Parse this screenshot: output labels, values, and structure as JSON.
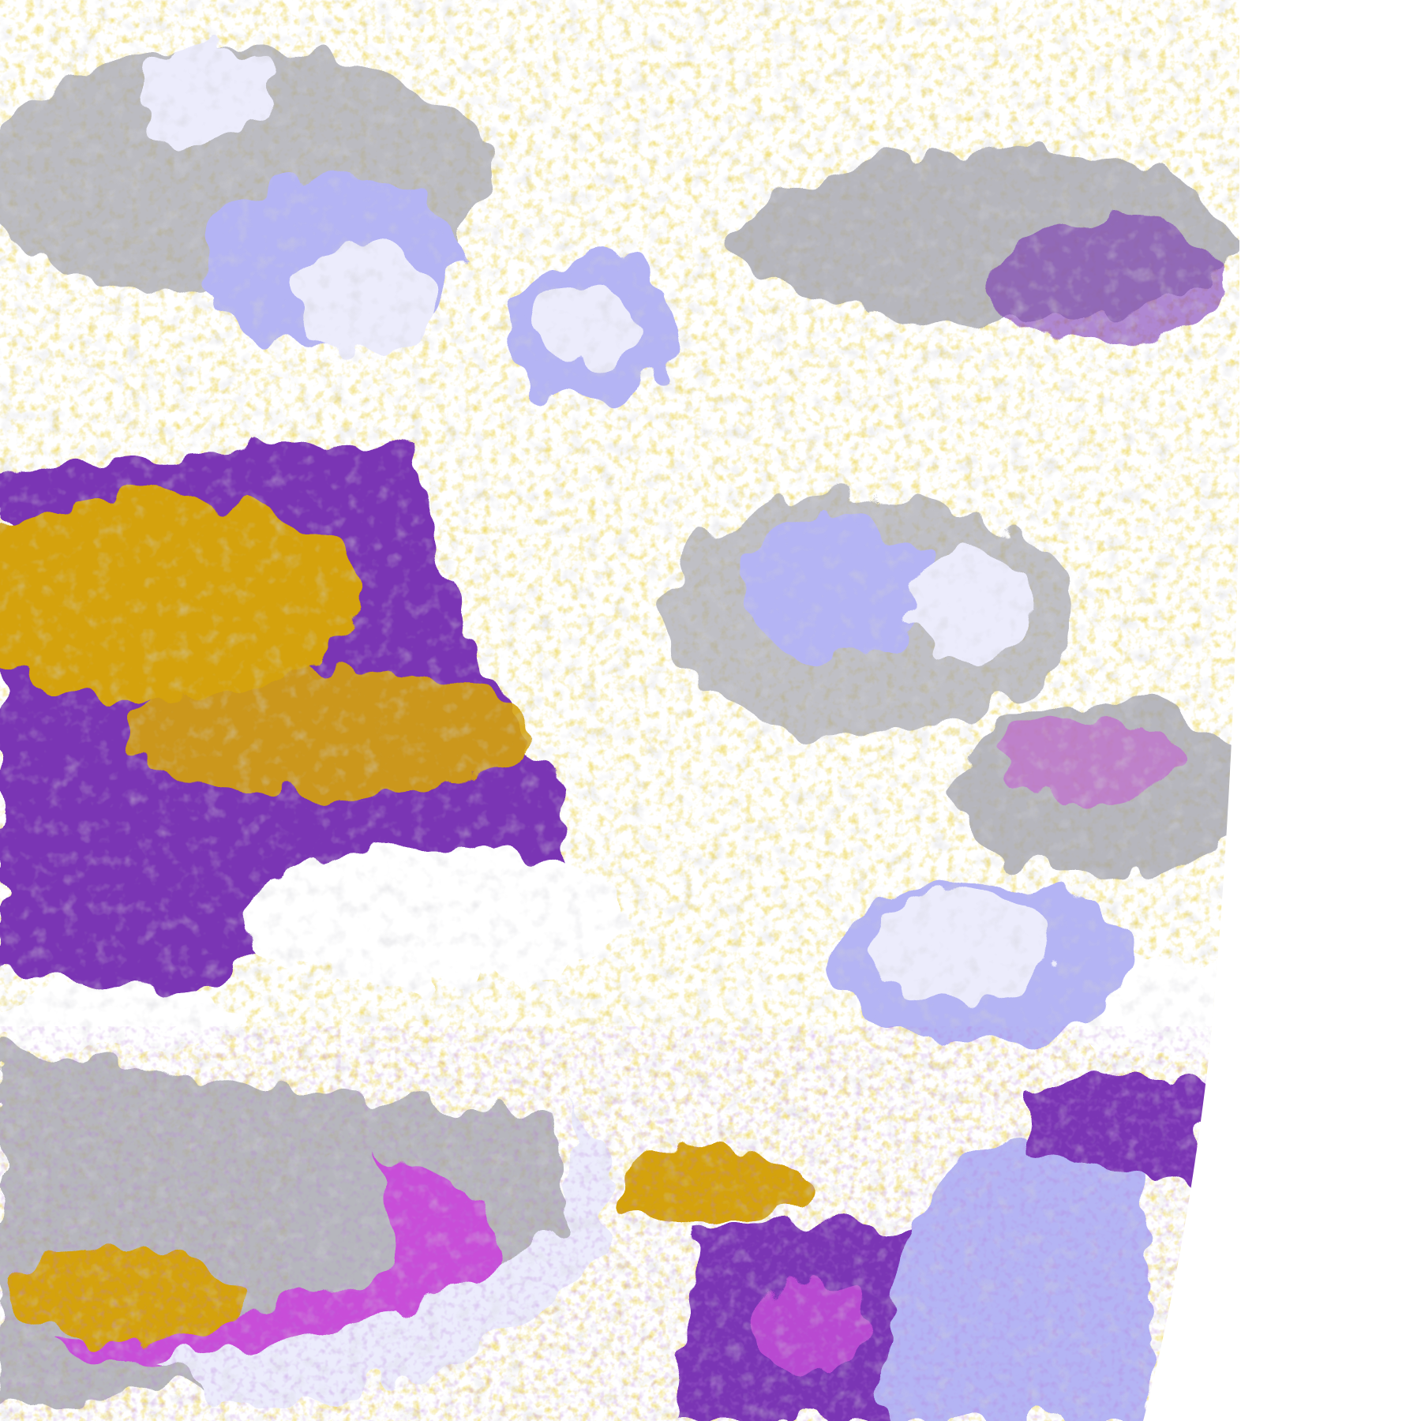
{
  "image": {
    "kind": "false-color satellite cloud classification",
    "palette": {
      "background": "#ffffff",
      "gold": "#d4a20c",
      "purple": "#7a35b4",
      "magenta": "#c84ed8",
      "lavender": "#b4b4f4",
      "pale_lavender": "#ececfc",
      "gray": "#a4a4ac"
    }
  }
}
